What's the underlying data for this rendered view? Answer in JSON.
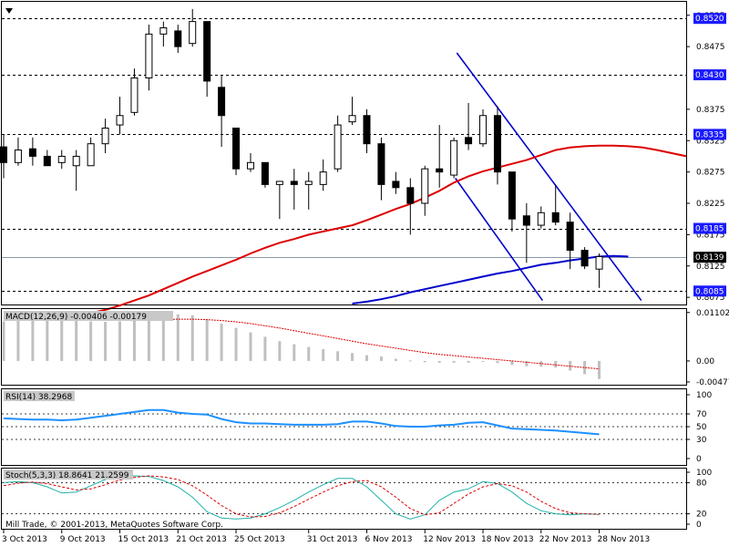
{
  "window": {
    "arrow_icon": "triangle-down-icon"
  },
  "copyright": "Mill Trade, © 2001-2013, MetaQuotes Software Corp.",
  "colors": {
    "up_body": "#ffffff",
    "down_body": "#000000",
    "ma_fast": "#0000cc",
    "ma_slow": "#dd0000",
    "channel": "#0000cc",
    "rsi": "#1e90ff",
    "stoch_main": "#20b2aa",
    "stoch_signal": "#dd0000",
    "macd_hist": "#c0c0c0",
    "macd_signal": "#dd0000",
    "label_box": "#1a1aff"
  },
  "chart_data": {
    "type": "candlestick",
    "symbol_period": "weekly-days",
    "price_scale": {
      "ylim": [
        0.8065,
        0.8545
      ],
      "ticks": [
        "0.8525",
        "0.8475",
        "0.8375",
        "0.8325",
        "0.8275",
        "0.8225",
        "0.8175",
        "0.8125",
        "0.8075"
      ],
      "hline_levels": [
        {
          "value": "0.8520",
          "num": 0.852
        },
        {
          "value": "0.8430",
          "num": 0.843
        },
        {
          "value": "0.8335",
          "num": 0.8335
        },
        {
          "value": "0.8185",
          "num": 0.8185
        },
        {
          "value": "0.8085",
          "num": 0.8085
        }
      ],
      "current_price": {
        "value": "0.8139",
        "num": 0.8139
      }
    },
    "date_labels": [
      {
        "i": 0,
        "text": "3 Oct 2013"
      },
      {
        "i": 4,
        "text": "9 Oct 2013"
      },
      {
        "i": 8,
        "text": "15 Oct 2013"
      },
      {
        "i": 12,
        "text": "21 Oct 2013"
      },
      {
        "i": 16,
        "text": "25 Oct 2013"
      },
      {
        "i": 21,
        "text": "31 Oct 2013"
      },
      {
        "i": 25,
        "text": "6 Nov 2013"
      },
      {
        "i": 29,
        "text": "12 Nov 2013"
      },
      {
        "i": 33,
        "text": "18 Nov 2013"
      },
      {
        "i": 37,
        "text": "22 Nov 2013"
      },
      {
        "i": 41,
        "text": "28 Nov 2013"
      }
    ],
    "candles": [
      {
        "o": 0.8315,
        "h": 0.8335,
        "l": 0.8265,
        "c": 0.829
      },
      {
        "o": 0.829,
        "h": 0.833,
        "l": 0.8285,
        "c": 0.831
      },
      {
        "o": 0.8312,
        "h": 0.833,
        "l": 0.8285,
        "c": 0.83
      },
      {
        "o": 0.83,
        "h": 0.831,
        "l": 0.8285,
        "c": 0.8285
      },
      {
        "o": 0.829,
        "h": 0.831,
        "l": 0.828,
        "c": 0.83
      },
      {
        "o": 0.8285,
        "h": 0.831,
        "l": 0.8245,
        "c": 0.83
      },
      {
        "o": 0.8285,
        "h": 0.833,
        "l": 0.8285,
        "c": 0.832
      },
      {
        "o": 0.832,
        "h": 0.836,
        "l": 0.8305,
        "c": 0.8345
      },
      {
        "o": 0.835,
        "h": 0.8395,
        "l": 0.8335,
        "c": 0.8365
      },
      {
        "o": 0.837,
        "h": 0.844,
        "l": 0.8365,
        "c": 0.8425
      },
      {
        "o": 0.8425,
        "h": 0.851,
        "l": 0.8405,
        "c": 0.8495
      },
      {
        "o": 0.8495,
        "h": 0.8515,
        "l": 0.8475,
        "c": 0.8505
      },
      {
        "o": 0.85,
        "h": 0.851,
        "l": 0.8465,
        "c": 0.8475
      },
      {
        "o": 0.848,
        "h": 0.8535,
        "l": 0.8475,
        "c": 0.8515
      },
      {
        "o": 0.8515,
        "h": 0.8515,
        "l": 0.8395,
        "c": 0.842
      },
      {
        "o": 0.841,
        "h": 0.843,
        "l": 0.8315,
        "c": 0.8365
      },
      {
        "o": 0.8345,
        "h": 0.8345,
        "l": 0.827,
        "c": 0.828
      },
      {
        "o": 0.828,
        "h": 0.8305,
        "l": 0.8275,
        "c": 0.829
      },
      {
        "o": 0.829,
        "h": 0.829,
        "l": 0.825,
        "c": 0.8255
      },
      {
        "o": 0.8255,
        "h": 0.826,
        "l": 0.82,
        "c": 0.826
      },
      {
        "o": 0.826,
        "h": 0.828,
        "l": 0.8215,
        "c": 0.8255
      },
      {
        "o": 0.8255,
        "h": 0.8275,
        "l": 0.8215,
        "c": 0.826
      },
      {
        "o": 0.8255,
        "h": 0.8295,
        "l": 0.8245,
        "c": 0.8275
      },
      {
        "o": 0.828,
        "h": 0.8365,
        "l": 0.8275,
        "c": 0.835
      },
      {
        "o": 0.8355,
        "h": 0.8395,
        "l": 0.835,
        "c": 0.8365
      },
      {
        "o": 0.8365,
        "h": 0.8375,
        "l": 0.8305,
        "c": 0.832
      },
      {
        "o": 0.832,
        "h": 0.833,
        "l": 0.823,
        "c": 0.8255
      },
      {
        "o": 0.826,
        "h": 0.8275,
        "l": 0.824,
        "c": 0.825
      },
      {
        "o": 0.825,
        "h": 0.8265,
        "l": 0.8175,
        "c": 0.8225
      },
      {
        "o": 0.8225,
        "h": 0.8285,
        "l": 0.8205,
        "c": 0.828
      },
      {
        "o": 0.828,
        "h": 0.835,
        "l": 0.825,
        "c": 0.8275
      },
      {
        "o": 0.827,
        "h": 0.833,
        "l": 0.8265,
        "c": 0.8325
      },
      {
        "o": 0.833,
        "h": 0.8385,
        "l": 0.831,
        "c": 0.832
      },
      {
        "o": 0.832,
        "h": 0.8375,
        "l": 0.8315,
        "c": 0.8365
      },
      {
        "o": 0.8365,
        "h": 0.838,
        "l": 0.8255,
        "c": 0.8275
      },
      {
        "o": 0.8275,
        "h": 0.8275,
        "l": 0.818,
        "c": 0.82
      },
      {
        "o": 0.8205,
        "h": 0.8225,
        "l": 0.813,
        "c": 0.819
      },
      {
        "o": 0.819,
        "h": 0.822,
        "l": 0.8185,
        "c": 0.821
      },
      {
        "o": 0.821,
        "h": 0.8255,
        "l": 0.819,
        "c": 0.8195
      },
      {
        "o": 0.8195,
        "h": 0.821,
        "l": 0.812,
        "c": 0.815
      },
      {
        "o": 0.815,
        "h": 0.8155,
        "l": 0.812,
        "c": 0.8125
      },
      {
        "o": 0.812,
        "h": 0.8145,
        "l": 0.809,
        "c": 0.814
      }
    ],
    "ma_slow": [
      0.805,
      0.8055,
      0.8062,
      0.807,
      0.8078,
      0.8088,
      0.8098,
      0.8108,
      0.8117,
      0.8126,
      0.8135,
      0.8145,
      0.8154,
      0.8162,
      0.8168,
      0.8175,
      0.818,
      0.8185,
      0.819,
      0.8198,
      0.8207,
      0.8216,
      0.8224,
      0.8234,
      0.8245,
      0.8258,
      0.8268,
      0.8276,
      0.8282,
      0.8288,
      0.8294,
      0.8302,
      0.831,
      0.8314,
      0.8316,
      0.8317,
      0.8317,
      0.8316,
      0.8314,
      0.831,
      0.8305,
      0.83
    ],
    "ma_slow_start": 6,
    "ma_fast": [
      0.8065,
      0.8068,
      0.8072,
      0.8077,
      0.8083,
      0.8088,
      0.8093,
      0.8098,
      0.8103,
      0.8108,
      0.8113,
      0.8117,
      0.8122,
      0.8127,
      0.813,
      0.8134,
      0.8137,
      0.814,
      0.8141,
      0.814
    ],
    "ma_fast_start": 24,
    "channel_lines": [
      {
        "i1": 31.2,
        "p1": 0.8465,
        "i2": 43.9,
        "p2": 0.807
      },
      {
        "i1": 31.1,
        "p1": 0.8265,
        "i2": 37.1,
        "p2": 0.807
      }
    ],
    "macd": {
      "label": "MACD(12,26,9) -0.00406 -0.00179",
      "ticks": [
        {
          "value": "0.01102",
          "num": 0.01102
        },
        {
          "value": "0.00",
          "num": 0.0
        },
        {
          "value": "-0.00477",
          "num": -0.00477
        }
      ],
      "ylim": [
        -0.0052,
        0.0116
      ],
      "hist": [
        0.009,
        0.0094,
        0.0096,
        0.0095,
        0.0093,
        0.0092,
        0.009,
        0.0089,
        0.009,
        0.0094,
        0.01,
        0.0105,
        0.0106,
        0.0104,
        0.0095,
        0.0085,
        0.0075,
        0.0065,
        0.0055,
        0.0045,
        0.0038,
        0.0032,
        0.0027,
        0.0022,
        0.0018,
        0.0013,
        0.001,
        0.0005,
        0.0001,
        -0.0003,
        -0.0004,
        -0.0004,
        -0.0004,
        -0.0002,
        -0.0005,
        -0.0009,
        -0.0012,
        -0.0013,
        -0.0015,
        -0.0022,
        -0.003,
        -0.0041
      ],
      "signal": [
        0.01,
        0.01,
        0.0099,
        0.0098,
        0.0097,
        0.0096,
        0.0095,
        0.0094,
        0.0093,
        0.0092,
        0.0093,
        0.0094,
        0.0095,
        0.0095,
        0.0094,
        0.0092,
        0.0089,
        0.0085,
        0.008,
        0.0075,
        0.0069,
        0.0063,
        0.0057,
        0.0051,
        0.0045,
        0.0039,
        0.0034,
        0.0029,
        0.0024,
        0.0019,
        0.0015,
        0.0012,
        0.0009,
        0.0006,
        0.0003,
        0.0,
        -0.0003,
        -0.0006,
        -0.0009,
        -0.0012,
        -0.0015,
        -0.0018
      ]
    },
    "rsi": {
      "label": "RSI(14) 38.2968",
      "ticks": [
        "100",
        "70",
        "50",
        "30",
        "0"
      ],
      "levels": [
        70,
        50,
        30
      ],
      "values": [
        63,
        62,
        61,
        61,
        60,
        61,
        64,
        67,
        70,
        73,
        76,
        76,
        72,
        70,
        69,
        62,
        57,
        55,
        55,
        54,
        53,
        53,
        53,
        54,
        58,
        58,
        55,
        51,
        50,
        50,
        52,
        53,
        56,
        57,
        52,
        47,
        46,
        45,
        44,
        42,
        40,
        38
      ]
    },
    "stoch": {
      "label": "Stoch(5,3,3) 18.8641 21.2599",
      "ticks": [
        "100",
        "80",
        "20",
        "0"
      ],
      "levels": [
        80,
        20
      ],
      "main": [
        80,
        82,
        80,
        72,
        60,
        62,
        74,
        86,
        92,
        93,
        92,
        84,
        72,
        52,
        24,
        12,
        10,
        12,
        20,
        32,
        46,
        62,
        76,
        88,
        88,
        72,
        46,
        20,
        10,
        18,
        46,
        62,
        68,
        82,
        78,
        62,
        40,
        26,
        20,
        18,
        20,
        19
      ],
      "signal": [
        74,
        79,
        81,
        78,
        72,
        66,
        68,
        76,
        85,
        90,
        93,
        91,
        86,
        74,
        56,
        36,
        20,
        14,
        15,
        22,
        34,
        48,
        62,
        74,
        82,
        84,
        72,
        52,
        30,
        18,
        22,
        40,
        58,
        72,
        78,
        74,
        62,
        44,
        30,
        22,
        20,
        19
      ]
    }
  }
}
